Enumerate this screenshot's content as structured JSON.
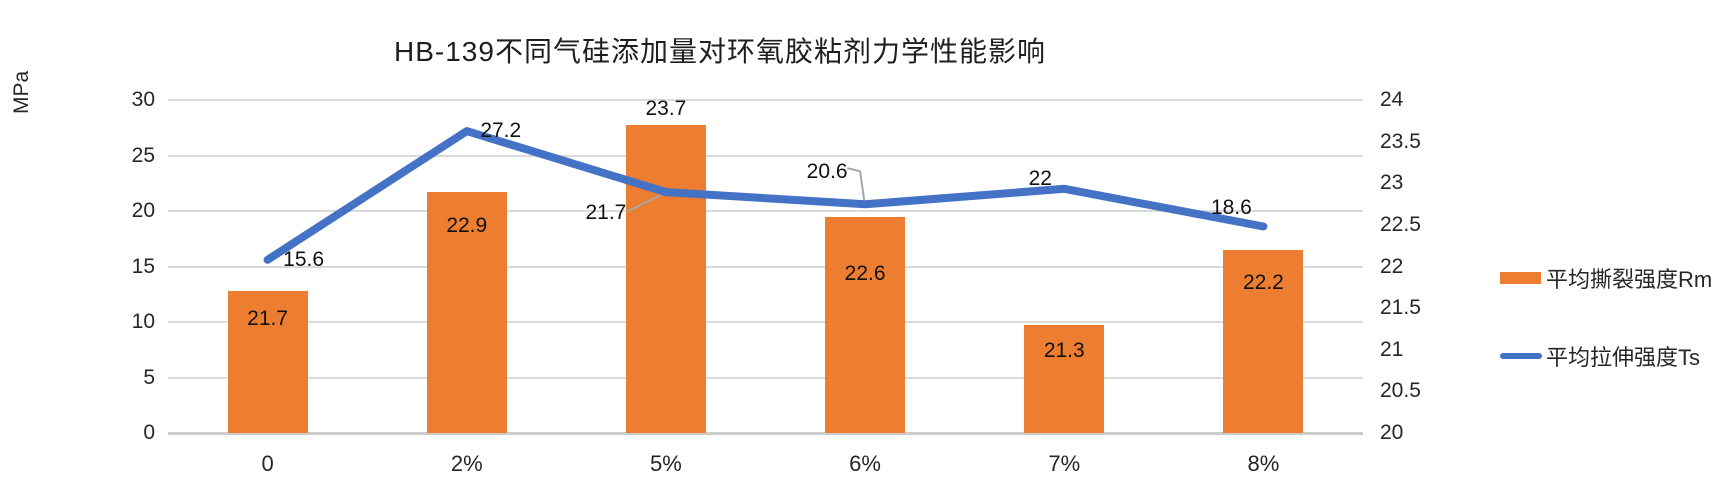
{
  "title": "HB-139不同气硅添加量对环氧胶粘剂力学性能影响",
  "chart_data": {
    "type": "bar+line combo",
    "title": "HB-139不同气硅添加量对环氧胶粘剂力学性能影响",
    "categories": [
      "0",
      "2%",
      "5%",
      "6%",
      "7%",
      "8%"
    ],
    "series": [
      {
        "name": "平均撕裂强度Rm",
        "type": "bar",
        "axis": "right",
        "color": "#ED7D31",
        "values": [
          21.7,
          22.9,
          23.7,
          22.6,
          21.3,
          22.2
        ],
        "labels": [
          "21.7",
          "22.9",
          "23.7",
          "22.6",
          "21.3",
          "22.2"
        ]
      },
      {
        "name": "平均拉伸强度Ts",
        "type": "line",
        "axis": "left",
        "color": "#4472C4",
        "values": [
          15.6,
          27.2,
          21.7,
          20.6,
          22,
          18.6
        ],
        "labels": [
          "15.6",
          "27.2",
          "21.7",
          "20.6",
          "22",
          "18.6"
        ]
      }
    ],
    "left_axis": {
      "label": "MPa",
      "min": 0,
      "max": 30,
      "step": 5,
      "tick_labels": [
        "30",
        "25",
        "20",
        "15",
        "10",
        "5",
        "0"
      ]
    },
    "right_axis": {
      "min": 20,
      "max": 24,
      "step": 0.5,
      "tick_labels": [
        "24",
        "23.5",
        "23",
        "22.5",
        "22",
        "21.5",
        "21",
        "20.5",
        "20"
      ]
    },
    "grid": true,
    "legend_position": "right",
    "colors": {
      "bar": "#ED7D31",
      "line": "#4472C4",
      "gridline": "#DADADA",
      "leader": "#A6A6A6",
      "text": "#262626"
    }
  }
}
